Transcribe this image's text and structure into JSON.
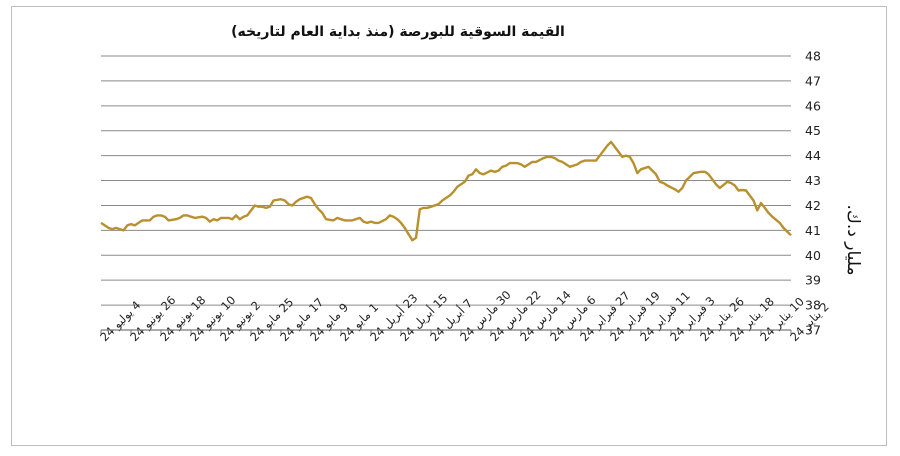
{
  "chart_data": {
    "type": "line",
    "title": "القيمة السوقية للبورصة (منذ بداية العام لتاريخه)",
    "ylabel": "مليار د.ك.",
    "xlabel": "",
    "ylim": [
      37,
      48
    ],
    "yticks": [
      37,
      38,
      39,
      40,
      41,
      42,
      43,
      44,
      45,
      46,
      47,
      48
    ],
    "grid": true,
    "legend": "none",
    "x_direction": "right-to-left",
    "color": "#B8902E",
    "x_tick_labels": [
      "2 يناير 24",
      "10 يناير 24",
      "18 يناير 24",
      "26 يناير 24",
      "3 فبراير 24",
      "11 فبراير 24",
      "19 فبراير 24",
      "27 فبراير 24",
      "6 مارس 24",
      "14 مارس 24",
      "22 مارس 24",
      "30 مارس 24",
      "7 أبريل 24",
      "15 أبريل 24",
      "23 أبريل 24",
      "1 مايو 24",
      "9 مايو 24",
      "17 مايو 24",
      "25 مايو 24",
      "2 يونيو 24",
      "10 يونيو 24",
      "18 يونيو 24",
      "26 يونيو 24",
      "4 يوليو 24"
    ],
    "series": [
      {
        "x": [
          "2024-01-02",
          "2024-01-03",
          "2024-01-04",
          "2024-01-05",
          "2024-01-07",
          "2024-01-08",
          "2024-01-09",
          "2024-01-10",
          "2024-01-11",
          "2024-01-12",
          "2024-01-14",
          "2024-01-15",
          "2024-01-16",
          "2024-01-17",
          "2024-01-18",
          "2024-01-19",
          "2024-01-21",
          "2024-01-22",
          "2024-01-23",
          "2024-01-24",
          "2024-01-25",
          "2024-01-26",
          "2024-01-28",
          "2024-01-29",
          "2024-01-30",
          "2024-01-31",
          "2024-02-01",
          "2024-02-02",
          "2024-02-04",
          "2024-02-05",
          "2024-02-06",
          "2024-02-07",
          "2024-02-08",
          "2024-02-09",
          "2024-02-11",
          "2024-02-12",
          "2024-02-13",
          "2024-02-14",
          "2024-02-15",
          "2024-02-16",
          "2024-02-18",
          "2024-02-19",
          "2024-02-20",
          "2024-02-21",
          "2024-02-22",
          "2024-02-23",
          "2024-02-25",
          "2024-02-26",
          "2024-02-27",
          "2024-02-28",
          "2024-02-29",
          "2024-03-01",
          "2024-03-03",
          "2024-03-04",
          "2024-03-05",
          "2024-03-06",
          "2024-03-07",
          "2024-03-08",
          "2024-03-10",
          "2024-03-11",
          "2024-03-12",
          "2024-03-13",
          "2024-03-14",
          "2024-03-15",
          "2024-03-17",
          "2024-03-18",
          "2024-03-19",
          "2024-03-20",
          "2024-03-21",
          "2024-03-22",
          "2024-03-24",
          "2024-03-25",
          "2024-03-26",
          "2024-03-27",
          "2024-03-28",
          "2024-03-29",
          "2024-03-31",
          "2024-04-01",
          "2024-04-02",
          "2024-04-03",
          "2024-04-04",
          "2024-04-05",
          "2024-04-07",
          "2024-04-08",
          "2024-04-09",
          "2024-04-10",
          "2024-04-11",
          "2024-04-12",
          "2024-04-14",
          "2024-04-15",
          "2024-04-16",
          "2024-04-17",
          "2024-04-18",
          "2024-04-19",
          "2024-04-21",
          "2024-04-22",
          "2024-04-23",
          "2024-04-24",
          "2024-04-25",
          "2024-04-26",
          "2024-04-28",
          "2024-04-29",
          "2024-04-30",
          "2024-05-01",
          "2024-05-02",
          "2024-05-03",
          "2024-05-05",
          "2024-05-06",
          "2024-05-07",
          "2024-05-08",
          "2024-05-09",
          "2024-05-10",
          "2024-05-12",
          "2024-05-13",
          "2024-05-14",
          "2024-05-15",
          "2024-05-16",
          "2024-05-17",
          "2024-05-19",
          "2024-05-20",
          "2024-05-21",
          "2024-05-22",
          "2024-05-23",
          "2024-05-24",
          "2024-05-26",
          "2024-05-27",
          "2024-05-28",
          "2024-05-29",
          "2024-05-30",
          "2024-05-31",
          "2024-06-02",
          "2024-06-03",
          "2024-06-04",
          "2024-06-05",
          "2024-06-06",
          "2024-06-07",
          "2024-06-09",
          "2024-06-10",
          "2024-06-11",
          "2024-06-12",
          "2024-06-13",
          "2024-06-14",
          "2024-06-16",
          "2024-06-17",
          "2024-06-18",
          "2024-06-19",
          "2024-06-20",
          "2024-06-21",
          "2024-06-23",
          "2024-06-24",
          "2024-06-25",
          "2024-06-26",
          "2024-06-27",
          "2024-06-28",
          "2024-06-30",
          "2024-07-01",
          "2024-07-02",
          "2024-07-03",
          "2024-07-04"
        ],
        "values": [
          40.8,
          40.95,
          41.1,
          41.3,
          41.55,
          41.7,
          41.9,
          42.1,
          41.8,
          42.2,
          42.6,
          42.62,
          42.6,
          42.8,
          42.9,
          42.95,
          42.7,
          42.85,
          43.05,
          43.25,
          43.35,
          43.35,
          43.3,
          43.15,
          43.0,
          42.7,
          42.55,
          42.65,
          42.8,
          42.9,
          42.95,
          43.25,
          43.4,
          43.55,
          43.45,
          43.3,
          43.7,
          43.95,
          44.0,
          43.95,
          44.35,
          44.55,
          44.4,
          44.2,
          44.0,
          43.8,
          43.8,
          43.8,
          43.75,
          43.65,
          43.6,
          43.55,
          43.75,
          43.8,
          43.9,
          43.95,
          43.95,
          43.9,
          43.75,
          43.75,
          43.65,
          43.55,
          43.65,
          43.7,
          43.7,
          43.6,
          43.55,
          43.4,
          43.35,
          43.4,
          43.25,
          43.3,
          43.45,
          43.25,
          43.2,
          42.95,
          42.75,
          42.55,
          42.4,
          42.3,
          42.2,
          42.05,
          41.95,
          41.9,
          41.9,
          41.85,
          40.7,
          40.6,
          41.1,
          41.3,
          41.45,
          41.55,
          41.6,
          41.45,
          41.3,
          41.3,
          41.35,
          41.3,
          41.35,
          41.5,
          41.4,
          41.4,
          41.4,
          41.45,
          41.5,
          41.4,
          41.45,
          41.7,
          41.85,
          42.05,
          42.3,
          42.35,
          42.25,
          42.15,
          42.0,
          42.05,
          42.2,
          42.25,
          42.2,
          41.95,
          41.9,
          41.95,
          41.95,
          42.0,
          41.6,
          41.55,
          41.45,
          41.6,
          41.45,
          41.5,
          41.5,
          41.4,
          41.45,
          41.35,
          41.5,
          41.55,
          41.5,
          41.55,
          41.6,
          41.6,
          41.5,
          41.45,
          41.4,
          41.55,
          41.6,
          41.6,
          41.55,
          41.4,
          41.4,
          41.3,
          41.2,
          41.25,
          41.2,
          41.0,
          41.1,
          41.05,
          41.1,
          41.2,
          41.3
        ]
      }
    ]
  }
}
